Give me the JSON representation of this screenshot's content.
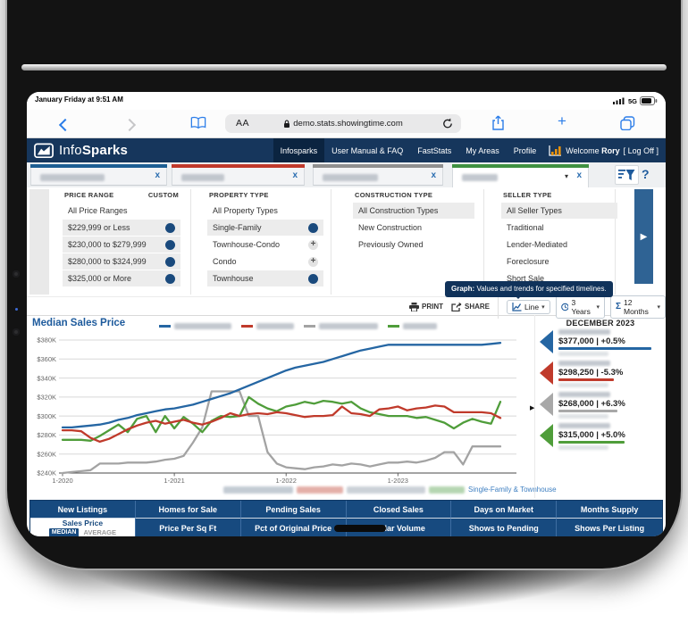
{
  "status": {
    "left": "January Friday at 9:51 AM",
    "network": "5G"
  },
  "browser": {
    "reader": "AA",
    "url": "demo.stats.showingtime.com"
  },
  "header": {
    "logo_info": "Info",
    "logo_sparks": "Sparks",
    "nav": [
      {
        "label": "Infosparks",
        "active": true
      },
      {
        "label": "User Manual & FAQ",
        "active": false
      },
      {
        "label": "FastStats",
        "active": false
      },
      {
        "label": "My Areas",
        "active": false
      },
      {
        "label": "Profile",
        "active": false
      }
    ],
    "welcome_prefix": "Welcome",
    "user_name": "Rory",
    "logoff": "[ Log Off ]"
  },
  "tabs": {
    "items": [
      {
        "color": "#1d5e93",
        "active": false,
        "label_redacted": true
      },
      {
        "color": "#c0392b",
        "active": false,
        "label_redacted": true
      },
      {
        "color": "#8f8f8f",
        "active": false,
        "label_redacted": true
      },
      {
        "color": "#3f9141",
        "active": true,
        "label_redacted": true
      }
    ],
    "help_label": "?"
  },
  "filters": {
    "columns": [
      {
        "header": "PRICE RANGE",
        "header_extra": "CUSTOM",
        "items": [
          {
            "label": "All Price Ranges",
            "style": "plain"
          },
          {
            "label": "$229,999 or Less",
            "style": "on"
          },
          {
            "label": "$230,000 to $279,999",
            "style": "on"
          },
          {
            "label": "$280,000 to $324,999",
            "style": "on"
          },
          {
            "label": "$325,000 or More",
            "style": "on"
          }
        ]
      },
      {
        "header": "PROPERTY TYPE",
        "header_extra": "",
        "items": [
          {
            "label": "All Property Types",
            "style": "plain"
          },
          {
            "label": "Single-Family",
            "style": "on"
          },
          {
            "label": "Townhouse-Condo",
            "style": "add"
          },
          {
            "label": "Condo",
            "style": "add"
          },
          {
            "label": "Townhouse",
            "style": "on"
          }
        ]
      },
      {
        "header": "CONSTRUCTION TYPE",
        "header_extra": "",
        "items": [
          {
            "label": "All Construction Types",
            "style": "selected"
          },
          {
            "label": "New Construction",
            "style": "plain"
          },
          {
            "label": "Previously Owned",
            "style": "plain"
          }
        ]
      },
      {
        "header": "SELLER TYPE",
        "header_extra": "",
        "items": [
          {
            "label": "All Seller Types",
            "style": "selected"
          },
          {
            "label": "Traditional",
            "style": "plain"
          },
          {
            "label": "Lender-Mediated",
            "style": "plain"
          },
          {
            "label": "Foreclosure",
            "style": "plain"
          },
          {
            "label": "Short Sale",
            "style": "plain"
          }
        ]
      }
    ]
  },
  "tooltip": {
    "label": "Graph:",
    "text": " Values and trends for specified timelines."
  },
  "controls": {
    "print": "PRINT",
    "share": "SHARE",
    "chart_type": "Line",
    "time_range": "3 Years",
    "interval": "12 Months"
  },
  "chart": {
    "title": "Median Sales Price",
    "caption_link": "Single-Family & Townhouse"
  },
  "stats": {
    "month": "DECEMBER 2023",
    "items": [
      {
        "value": "$377,000 | +0.5%",
        "color": "#2566a3"
      },
      {
        "value": "$298,250 | -5.3%",
        "color": "#c03a2b"
      },
      {
        "value": "$268,000 | +6.3%",
        "color": "#a8a8a8"
      },
      {
        "value": "$315,000 | +5.0%",
        "color": "#4f9d3a"
      }
    ]
  },
  "metrics": {
    "row1": [
      "New Listings",
      "Homes for Sale",
      "Pending Sales",
      "Closed Sales",
      "Days on Market",
      "Months Supply"
    ],
    "row2_first": {
      "title": "Sales Price",
      "median": "MEDIAN",
      "average": "AVERAGE"
    },
    "row2": [
      "Price Per Sq Ft",
      "Pct of Original Price",
      "Dollar Volume",
      "Shows to Pending",
      "Shows Per Listing"
    ]
  },
  "chart_data": {
    "type": "line",
    "title": "Median Sales Price",
    "x_unit": "month",
    "x_start": "2020-01",
    "x_end": "2023-12",
    "x_tick_labels": [
      "1-2020",
      "1-2021",
      "1-2022",
      "1-2023"
    ],
    "x_tick_indices": [
      0,
      12,
      24,
      36
    ],
    "ylim_thousands": [
      240,
      380
    ],
    "y_tick_values": [
      380,
      360,
      340,
      320,
      300,
      280,
      260,
      240
    ],
    "y_tick_labels": [
      "$380K",
      "$360K",
      "$340K",
      "$320K",
      "$300K",
      "$280K",
      "$260K",
      "$240K"
    ],
    "grid": true,
    "legend_position": "top",
    "values_unit": "USD thousands",
    "series": [
      {
        "name": "[label blurred]",
        "color": "#2566a3",
        "values": [
          288,
          288,
          289,
          290,
          291,
          293,
          296,
          298,
          301,
          303,
          305,
          307,
          308,
          310,
          312,
          315,
          318,
          321,
          324,
          328,
          332,
          336,
          340,
          344,
          348,
          351,
          353,
          355,
          357,
          360,
          363,
          366,
          369,
          371,
          373,
          375,
          375,
          375,
          375,
          375,
          375,
          375,
          375,
          375,
          375,
          375,
          376,
          377
        ]
      },
      {
        "name": "[label blurred]",
        "color": "#c03a2b",
        "values": [
          285,
          285,
          284,
          277,
          273,
          276,
          281,
          286,
          290,
          293,
          295,
          292,
          294,
          296,
          293,
          291,
          294,
          298,
          303,
          300,
          302,
          303,
          302,
          304,
          303,
          301,
          299,
          300,
          300,
          301,
          310,
          303,
          302,
          300,
          307,
          308,
          310,
          306,
          308,
          309,
          311,
          310,
          304,
          304,
          304,
          304,
          303,
          298
        ]
      },
      {
        "name": "[label blurred]",
        "color": "#a3a3a3",
        "values": [
          240,
          241,
          242,
          243,
          250,
          250,
          250,
          251,
          251,
          251,
          252,
          254,
          255,
          258,
          272,
          288,
          326,
          326,
          326,
          326,
          300,
          300,
          262,
          250,
          246,
          245,
          244,
          246,
          247,
          249,
          248,
          250,
          249,
          247,
          249,
          251,
          251,
          252,
          251,
          253,
          256,
          262,
          262,
          249,
          268,
          268,
          268,
          268
        ]
      },
      {
        "name": "[label blurred]",
        "color": "#4f9d3a",
        "values": [
          275,
          275,
          275,
          274,
          279,
          285,
          291,
          283,
          297,
          300,
          283,
          300,
          287,
          299,
          292,
          283,
          295,
          300,
          299,
          300,
          320,
          313,
          308,
          305,
          310,
          312,
          315,
          313,
          316,
          315,
          313,
          315,
          308,
          304,
          302,
          300,
          300,
          300,
          298,
          299,
          296,
          293,
          287,
          293,
          297,
          294,
          292,
          315
        ]
      }
    ],
    "latest": {
      "label": "DECEMBER 2023",
      "values": [
        "$377,000 | +0.5%",
        "$298,250 | -5.3%",
        "$268,000 | +6.3%",
        "$315,000 | +5.0%"
      ]
    }
  }
}
